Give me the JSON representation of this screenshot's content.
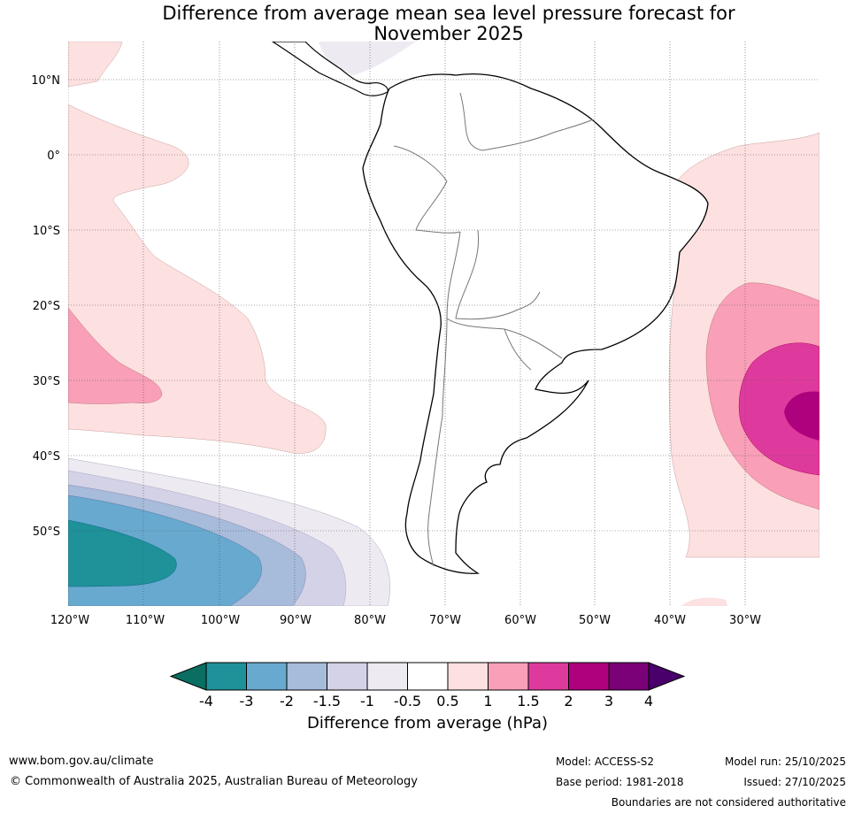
{
  "title": {
    "line1": "Difference from average mean sea level pressure forecast for",
    "line2": "November 2025"
  },
  "map": {
    "lat_labels": [
      "10°N",
      "0°",
      "10°S",
      "20°S",
      "30°S",
      "40°S",
      "50°S"
    ],
    "lon_labels": [
      "120°W",
      "110°W",
      "100°W",
      "90°W",
      "80°W",
      "70°W",
      "60°W",
      "50°W",
      "40°W",
      "30°W"
    ],
    "lat_values": [
      10,
      0,
      -10,
      -20,
      -30,
      -40,
      -50
    ],
    "lon_values": [
      -120,
      -110,
      -100,
      -90,
      -80,
      -70,
      -60,
      -50,
      -40,
      -30
    ],
    "lon_range": [
      -120,
      -20
    ],
    "lat_range": [
      15,
      -60
    ]
  },
  "colorbar": {
    "ticks": [
      "-4",
      "-3",
      "-2",
      "-1.5",
      "-1",
      "-0.5",
      "0.5",
      "1",
      "1.5",
      "2",
      "3",
      "4"
    ],
    "colors": [
      "#1e9199",
      "#68a9d0",
      "#a7bbdb",
      "#d3d2e6",
      "#eeeaf2",
      "#ffffff",
      "#fde0e0",
      "#f99fb8",
      "#de3a9d",
      "#ae017e",
      "#7a0177"
    ],
    "extend_low_color": "#0a6e62",
    "extend_high_color": "#49006a",
    "label": "Difference from average (hPa)"
  },
  "footer": {
    "website": "www.bom.gov.au/climate",
    "copyright": "© Commonwealth of Australia 2025, Australian Bureau of Meteorology",
    "model": "Model: ACCESS-S2",
    "base_period": "Base period: 1981-2018",
    "model_run": "Model run: 25/10/2025",
    "issued": "Issued: 27/10/2025",
    "disclaimer": "Boundaries are not considered authoritative"
  }
}
